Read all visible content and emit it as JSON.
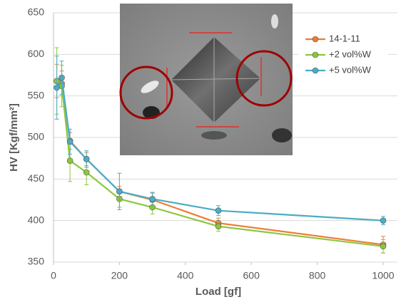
{
  "chart_data": {
    "type": "line",
    "x_label": "Load [gf]",
    "y_label": "HV [Kgf/mm²]",
    "x": [
      10,
      25,
      50,
      100,
      200,
      300,
      500,
      1000
    ],
    "series": [
      {
        "name": "14-1-11",
        "color": "#ed7d31",
        "values": [
          568,
          565,
          496,
          474,
          435,
          425,
          397,
          371
        ],
        "errors": [
          20,
          15,
          10,
          8,
          6,
          8,
          6,
          10
        ]
      },
      {
        "name": "+2 vol%W",
        "color": "#8cc63f",
        "values": [
          568,
          562,
          472,
          458,
          426,
          416,
          393,
          369
        ],
        "errors": [
          40,
          25,
          25,
          15,
          10,
          8,
          6,
          8
        ]
      },
      {
        "name": "+5 vol%W",
        "color": "#4bacc6",
        "values": [
          560,
          572,
          495,
          474,
          435,
          426,
          412,
          400
        ],
        "errors": [
          38,
          20,
          15,
          10,
          22,
          8,
          6,
          5
        ]
      }
    ],
    "xlim": [
      0,
      1000
    ],
    "xticks": [
      0,
      200,
      400,
      600,
      800,
      1000
    ],
    "ylim": [
      350,
      650
    ],
    "yticks": [
      350,
      400,
      450,
      500,
      550,
      600,
      650
    ],
    "grid": true,
    "legend": "upper right"
  }
}
